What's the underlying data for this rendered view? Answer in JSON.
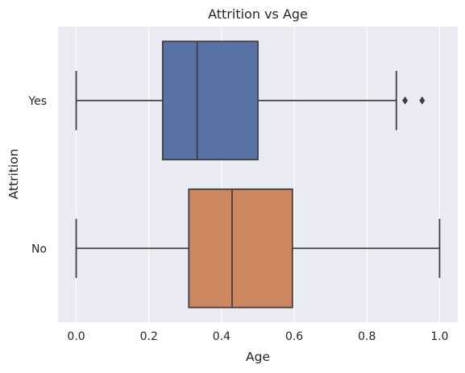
{
  "chart_data": {
    "type": "boxplot",
    "orientation": "horizontal",
    "title": "Attrition vs Age",
    "xlabel": "Age",
    "ylabel": "Attrition",
    "xlim": [
      -0.05,
      1.05
    ],
    "xticks": [
      0.0,
      0.2,
      0.4,
      0.6,
      0.8,
      1.0
    ],
    "xtick_labels": [
      "0.0",
      "0.2",
      "0.4",
      "0.6",
      "0.8",
      "1.0"
    ],
    "grid": true,
    "categories": [
      "Yes",
      "No"
    ],
    "boxes": [
      {
        "category": "Yes",
        "whisker_low": 0.0,
        "q1": 0.238,
        "median": 0.333,
        "q3": 0.5,
        "whisker_high": 0.881,
        "outliers": [
          0.905,
          0.952
        ],
        "color": "#5872a6"
      },
      {
        "category": "No",
        "whisker_low": 0.0,
        "q1": 0.31,
        "median": 0.429,
        "q3": 0.595,
        "whisker_high": 1.0,
        "outliers": [],
        "color": "#cd8862"
      }
    ]
  }
}
